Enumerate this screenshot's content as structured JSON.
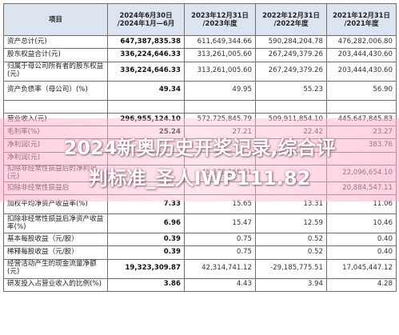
{
  "table": {
    "headers": {
      "item": "项目",
      "h1_2024": "2024年6月30日\n/2024年1月—6月",
      "y2023": "2023年12月31日\n/2023年度",
      "y2022": "2022年12月31日\n/2022年度",
      "y2021": "2021年12月31日\n/2021年度"
    },
    "rows": [
      {
        "label": "资产总计(元)",
        "v1": "647,387,835.38",
        "v2": "611,649,344.66",
        "v3": "590,284,204.78",
        "v4": "476,282,006.80"
      },
      {
        "label": "股东权益合计(元)",
        "v1": "336,224,646.33",
        "v2": "313,261,005.60",
        "v3": "267,249,379.26",
        "v4": "203,444,430.60"
      },
      {
        "label": "归属于母公司所有者的股东权益(元)",
        "v1": "336,224,646.33",
        "v2": "313,261,005.60",
        "v3": "267,249,379.26",
        "v4": "203,444,430.60"
      },
      {
        "label": "资产负债率（母公司）(%)",
        "v1": "49.34",
        "v2": "49.95",
        "v3": "55.23",
        "v4": "56.90"
      },
      {
        "label": "营业收入(元)",
        "v1": "296,955,124.10",
        "v2": "572,725,845.79",
        "v3": "509,911,854.10",
        "v4": "445,647,845.83"
      },
      {
        "label": "毛利率(%)",
        "v1": "25.24",
        "v2": "27.21",
        "v3": "22.42",
        "v4": "23.27"
      },
      {
        "label": "净利润(元)",
        "v1": "",
        "v2": "",
        "v3": "",
        "v4": "383.76"
      },
      {
        "label": "净利润(元)",
        "v1": "",
        "v2": "",
        "v3": "",
        "v4": ""
      },
      {
        "label": "扣除非经常性损益后的净利润(元)",
        "v1": "",
        "v2": "45,378,268.51",
        "v3": "",
        "v4": "22,096,654.10"
      },
      {
        "label": "扣除非经常性损益后",
        "v1": "",
        "v2": "",
        "v3": "",
        "v4": "20,884,547.11"
      },
      {
        "label": "加权平均净资产收益率(%)",
        "v1": "7.33",
        "v2": "15.65",
        "v3": "13.31",
        "v4": "11.06"
      },
      {
        "label": "扣除非经常性损益后净资产收益率(%)",
        "v1": "6.96",
        "v2": "15.47",
        "v3": "12.59",
        "v4": "10.46"
      },
      {
        "label": "基本每股收益（元/股）",
        "v1": "0.39",
        "v2": "0.75",
        "v3": "0.52",
        "v4": "0.40"
      },
      {
        "label": "稀释每股收益（元/股）",
        "v1": "0.39",
        "v2": "0.75",
        "v3": "0.52",
        "v4": "0.40"
      },
      {
        "label": "经营活动产生的现金流量净额(元)",
        "v1": "19,323,309.87",
        "v2": "42,314,741.12",
        "v3": "-29,185,775.51",
        "v4": "17,045,447.12"
      },
      {
        "label": "研发投入占营业收入的比例(%)",
        "v1": "3.86",
        "v2": "4.43",
        "v3": "3.94",
        "v4": "4.28"
      }
    ]
  },
  "watermark": {
    "text": "2024新奥历史开奖记录,综合评\n判标准_圣人IWP111.82"
  }
}
